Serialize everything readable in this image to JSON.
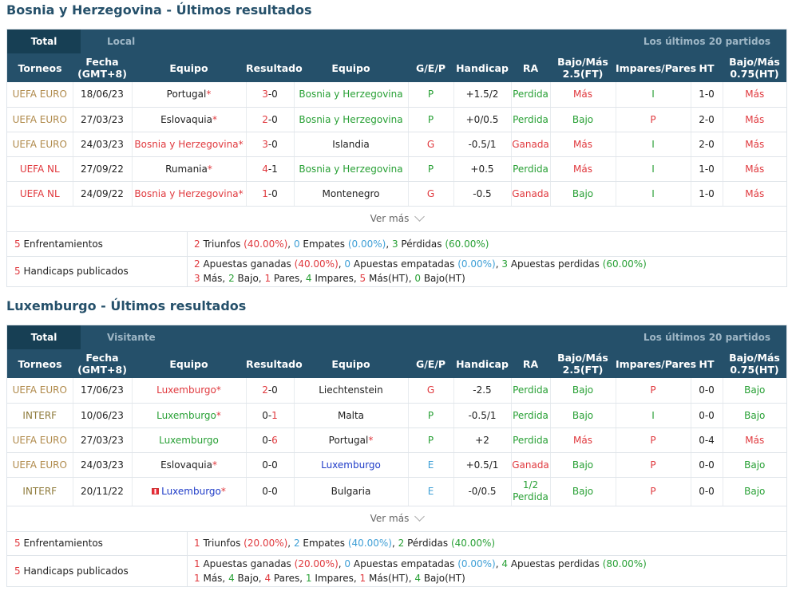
{
  "sections": [
    {
      "title": "Bosnia y Herzegovina - Últimos resultados",
      "tabs": {
        "total": "Total",
        "side": "Local",
        "right": "Los últimos 20 partidos"
      },
      "headers": {
        "torneos": "Torneos",
        "fecha1": "Fecha",
        "fecha2": "(GMT+8)",
        "equipo1": "Equipo",
        "resultado": "Resultado",
        "equipo2": "Equipo",
        "gep": "G/E/P",
        "handicap": "Handicap",
        "ra": "RA",
        "bm1": "Bajo/Más",
        "bm1b": "2.5(FT)",
        "ip": "Impares/Pares",
        "ht": "HT",
        "bm2": "Bajo/Más",
        "bm2b": "0.75(HT)"
      },
      "rows": [
        {
          "tour": "UEFA EURO",
          "date": "18/06/23",
          "home": "Portugal",
          "star": "*",
          "sH": "3",
          "sA": "0",
          "away": "Bosnia y Herzegovina",
          "gep": "P",
          "hc": "+1.5/2",
          "ra": "Perdida",
          "bm": "Más",
          "ip": "I",
          "ht": "1-0",
          "bm2": "Más"
        },
        {
          "tour": "UEFA EURO",
          "date": "27/03/23",
          "home": "Eslovaquia",
          "star": "*",
          "sH": "2",
          "sA": "0",
          "away": "Bosnia y Herzegovina",
          "gep": "P",
          "hc": "+0/0.5",
          "ra": "Perdida",
          "bm": "Bajo",
          "ip": "P",
          "ht": "2-0",
          "bm2": "Más"
        },
        {
          "tour": "UEFA EURO",
          "date": "24/03/23",
          "home": "Bosnia y Herzegovina",
          "star": "*",
          "sH": "3",
          "sA": "0",
          "away": "Islandia",
          "gep": "G",
          "hc": "-0.5/1",
          "ra": "Ganada",
          "bm": "Más",
          "ip": "I",
          "ht": "2-0",
          "bm2": "Más"
        },
        {
          "tour": "UEFA NL",
          "date": "27/09/22",
          "home": "Rumania",
          "star": "*",
          "sH": "4",
          "sA": "1",
          "away": "Bosnia y Herzegovina",
          "gep": "P",
          "hc": "+0.5",
          "ra": "Perdida",
          "bm": "Más",
          "ip": "I",
          "ht": "1-0",
          "bm2": "Más"
        },
        {
          "tour": "UEFA NL",
          "date": "24/09/22",
          "home": "Bosnia y Herzegovina",
          "star": "*",
          "sH": "1",
          "sA": "0",
          "away": "Montenegro",
          "gep": "G",
          "hc": "-0.5",
          "ra": "Ganada",
          "bm": "Bajo",
          "ip": "I",
          "ht": "1-0",
          "bm2": "Más"
        }
      ],
      "ver_mas": "Ver más",
      "summary": {
        "enf_n": "5",
        "enf_label": "Enfrentamientos",
        "enf": {
          "w": "2",
          "wt": "Triunfos",
          "wp": "(40.00%)",
          "d": "0",
          "dt": "Empates",
          "dp": "(0.00%)",
          "l": "3",
          "lt": "Pérdidas",
          "lp": "(60.00%)"
        },
        "hc_n": "5",
        "hc_label": "Handicaps publicados",
        "hc": {
          "w": "2",
          "wt": "Apuestas ganadas",
          "wp": "(40.00%)",
          "d": "0",
          "dt": "Apuestas empatadas",
          "dp": "(0.00%)",
          "l": "3",
          "lt": "Apuestas perdidas",
          "lp": "(60.00%)"
        },
        "ou": {
          "mas": "3",
          "mas_t": "Más,",
          "bajo": "2",
          "bajo_t": "Bajo,",
          "pares": "1",
          "pares_t": "Pares,",
          "imp": "4",
          "imp_t": "Impares,",
          "masht": "5",
          "masht_t": "Más(HT),",
          "bajoht": "0",
          "bajoht_t": "Bajo(HT)"
        }
      }
    },
    {
      "title": "Luxemburgo - Últimos resultados",
      "tabs": {
        "total": "Total",
        "side": "Visitante",
        "right": "Los últimos 20 partidos"
      },
      "headers": {
        "torneos": "Torneos",
        "fecha1": "Fecha",
        "fecha2": "(GMT+8)",
        "equipo1": "Equipo",
        "resultado": "Resultado",
        "equipo2": "Equipo",
        "gep": "G/E/P",
        "handicap": "Handicap",
        "ra": "RA",
        "bm1": "Bajo/Más",
        "bm1b": "2.5(FT)",
        "ip": "Impares/Pares",
        "ht": "HT",
        "bm2": "Bajo/Más",
        "bm2b": "0.75(HT)"
      },
      "rows": [
        {
          "tour": "UEFA EURO",
          "date": "17/06/23",
          "home": "Luxemburgo",
          "star": "*",
          "sH": "2",
          "sA": "0",
          "away": "Liechtenstein",
          "gep": "G",
          "hc": "-2.5",
          "ra": "Perdida",
          "bm": "Bajo",
          "ip": "P",
          "ht": "0-0",
          "bm2": "Bajo"
        },
        {
          "tour": "INTERF",
          "date": "10/06/23",
          "home": "Luxemburgo",
          "star": "*",
          "sH": "0",
          "sA": "1",
          "away": "Malta",
          "gep": "P",
          "hc": "-0.5/1",
          "ra": "Perdida",
          "bm": "Bajo",
          "ip": "I",
          "ht": "0-0",
          "bm2": "Bajo"
        },
        {
          "tour": "UEFA EURO",
          "date": "27/03/23",
          "home": "Luxemburgo",
          "star": "",
          "sH": "0",
          "sA": "6",
          "away": "Portugal",
          "awayStar": "*",
          "gep": "P",
          "hc": "+2",
          "ra": "Perdida",
          "bm": "Más",
          "ip": "P",
          "ht": "0-4",
          "bm2": "Más"
        },
        {
          "tour": "UEFA EURO",
          "date": "24/03/23",
          "home": "Eslovaquia",
          "star": "*",
          "sH": "0",
          "sA": "0",
          "away": "Luxemburgo",
          "gep": "E",
          "hc": "+0.5/1",
          "ra": "Ganada",
          "bm": "Bajo",
          "ip": "P",
          "ht": "0-0",
          "bm2": "Bajo"
        },
        {
          "tour": "INTERF",
          "date": "20/11/22",
          "home": "Luxemburgo",
          "star": "*",
          "sH": "0",
          "sA": "0",
          "away": "Bulgaria",
          "gep": "E",
          "hc": "-0/0.5",
          "ra1": "1/2",
          "ra": "Perdida",
          "bm": "Bajo",
          "ip": "P",
          "ht": "0-0",
          "bm2": "Bajo"
        }
      ],
      "ver_mas": "Ver más",
      "summary": {
        "enf_n": "5",
        "enf_label": "Enfrentamientos",
        "enf": {
          "w": "1",
          "wt": "Triunfos",
          "wp": "(20.00%)",
          "d": "2",
          "dt": "Empates",
          "dp": "(40.00%)",
          "l": "2",
          "lt": "Pérdidas",
          "lp": "(40.00%)"
        },
        "hc_n": "5",
        "hc_label": "Handicaps publicados",
        "hc": {
          "w": "1",
          "wt": "Apuestas ganadas",
          "wp": "(20.00%)",
          "d": "0",
          "dt": "Apuestas empatadas",
          "dp": "(0.00%)",
          "l": "4",
          "lt": "Apuestas perdidas",
          "lp": "(80.00%)"
        },
        "ou": {
          "mas": "1",
          "mas_t": "Más,",
          "bajo": "4",
          "bajo_t": "Bajo,",
          "pares": "4",
          "pares_t": "Pares,",
          "imp": "1",
          "imp_t": "Impares,",
          "masht": "1",
          "masht_t": "Más(HT),",
          "bajoht": "4",
          "bajoht_t": "Bajo(HT)"
        }
      }
    }
  ],
  "colors": {
    "header": "#25506a",
    "tabActive": "#173f54",
    "red": "#e0393e",
    "green": "#28a035",
    "blue": "#1f3cc8",
    "lightblue": "#3e9fd6",
    "gold": "#b08a4b"
  }
}
